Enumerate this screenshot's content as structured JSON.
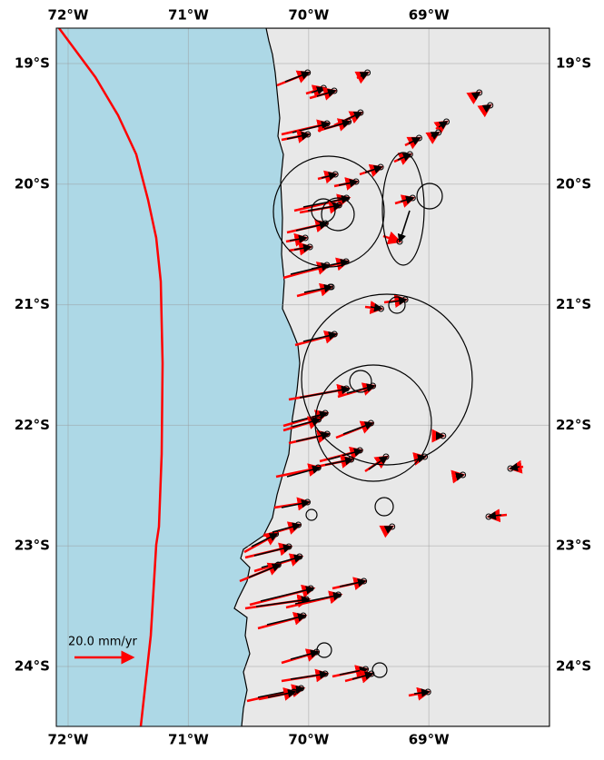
{
  "map": {
    "lon_ticks": [
      {
        "value": -72,
        "label": "72°W"
      },
      {
        "value": -71,
        "label": "71°W"
      },
      {
        "value": -70,
        "label": "70°W"
      },
      {
        "value": -69,
        "label": "69°W"
      }
    ],
    "lat_ticks": [
      {
        "value": -19,
        "label": "19°S"
      },
      {
        "value": -20,
        "label": "20°S"
      },
      {
        "value": -21,
        "label": "21°S"
      },
      {
        "value": -22,
        "label": "22°S"
      },
      {
        "value": -23,
        "label": "23°S"
      },
      {
        "value": -24,
        "label": "24°S"
      }
    ],
    "scale_label": "20.0 mm/yr"
  }
}
